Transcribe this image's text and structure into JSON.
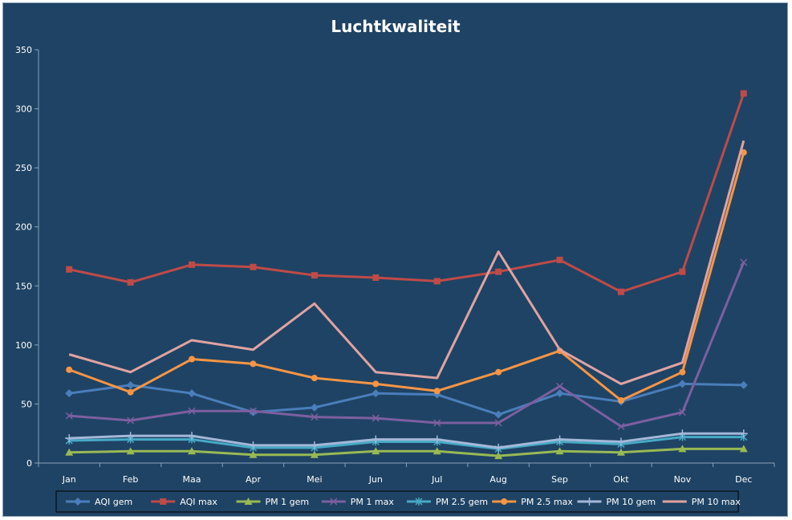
{
  "chart_data": {
    "type": "line",
    "title": "Luchtkwaliteit",
    "categories": [
      "Jan",
      "Feb",
      "Maa",
      "Apr",
      "Mei",
      "Jun",
      "Jul",
      "Aug",
      "Sep",
      "Okt",
      "Nov",
      "Dec"
    ],
    "ylim": [
      0,
      350
    ],
    "yticks": [
      0,
      50,
      100,
      150,
      200,
      250,
      300,
      350
    ],
    "grid": false,
    "legend_position": "bottom",
    "series": [
      {
        "name": "AQI gem",
        "color": "#4a7ebb",
        "marker": "diamond",
        "values": [
          59,
          66,
          59,
          43,
          47,
          59,
          58,
          41,
          59,
          52,
          67,
          66
        ]
      },
      {
        "name": "AQI max",
        "color": "#be4b48",
        "marker": "square",
        "values": [
          164,
          153,
          168,
          166,
          159,
          157,
          154,
          162,
          172,
          145,
          162,
          313
        ]
      },
      {
        "name": "PM 1 gem",
        "color": "#98b954",
        "marker": "triangle",
        "values": [
          9,
          10,
          10,
          7,
          7,
          10,
          10,
          6,
          10,
          9,
          12,
          12
        ]
      },
      {
        "name": "PM 1 max",
        "color": "#7d5fa0",
        "marker": "x",
        "values": [
          40,
          36,
          44,
          44,
          39,
          38,
          34,
          34,
          65,
          31,
          43,
          170
        ]
      },
      {
        "name": "PM 2.5 gem",
        "color": "#46aac5",
        "marker": "star",
        "values": [
          19,
          20,
          20,
          13,
          13,
          18,
          18,
          12,
          18,
          16,
          22,
          22
        ]
      },
      {
        "name": "PM 2.5 max",
        "color": "#f69545",
        "marker": "circle",
        "values": [
          79,
          60,
          88,
          84,
          72,
          67,
          61,
          77,
          95,
          53,
          77,
          263
        ]
      },
      {
        "name": "PM 10 gem",
        "color": "#a5b8d9",
        "marker": "plus",
        "values": [
          21,
          23,
          23,
          15,
          15,
          20,
          20,
          13,
          20,
          18,
          25,
          25
        ]
      },
      {
        "name": "PM 10 max",
        "color": "#e0a3a2",
        "marker": "none",
        "values": [
          92,
          77,
          104,
          96,
          135,
          77,
          72,
          179,
          96,
          67,
          85,
          273
        ]
      }
    ]
  }
}
